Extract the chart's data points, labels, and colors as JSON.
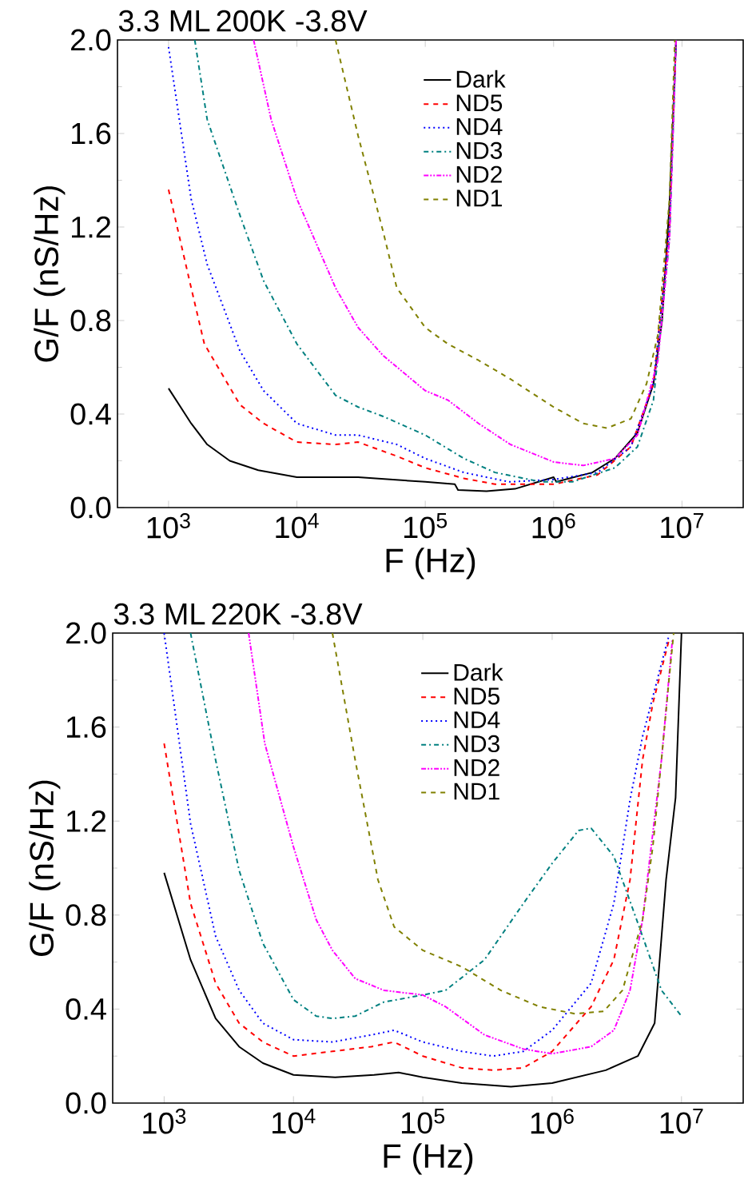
{
  "chart_data": [
    {
      "type": "line",
      "title": "3.3 ML",
      "subtitle": "200K -3.8V",
      "xlabel": "F (Hz)",
      "ylabel": "G/F (nS/Hz)",
      "log": "x",
      "legend": "top right",
      "xlim": [
        400,
        30000000
      ],
      "ylim": [
        0,
        2
      ],
      "xticks": [
        {
          "value": 1000,
          "label": "10$^{3}$"
        },
        {
          "value": 10000,
          "label": "10$^{4}$"
        },
        {
          "value": 100000,
          "label": "10$^{5}$"
        },
        {
          "value": 1000000,
          "label": "10$^{6}$"
        },
        {
          "value": 10000000,
          "label": "10$^{7}$"
        }
      ],
      "yticks": [
        {
          "value": 0,
          "label": "0.0"
        },
        {
          "value": 0.4,
          "label": "0.4"
        },
        {
          "value": 0.8,
          "label": "0.8"
        },
        {
          "value": 1.2,
          "label": "1.2"
        },
        {
          "value": 1.6,
          "label": "1.6"
        },
        {
          "value": 2,
          "label": "2.0"
        }
      ],
      "series": [
        {
          "name": "Dark",
          "color": "#000000",
          "line_style": "solid",
          "x": [
            1000,
            1500,
            2000,
            3000,
            5000,
            10000,
            30000,
            100000,
            170000,
            180000,
            300000,
            500000,
            1000000,
            1050000,
            2000000,
            3000000,
            4500000,
            6000000,
            7000000,
            8000000,
            9000000
          ],
          "values": [
            0.51,
            0.36,
            0.27,
            0.2,
            0.16,
            0.13,
            0.13,
            0.11,
            0.1,
            0.075,
            0.07,
            0.08,
            0.13,
            0.11,
            0.15,
            0.21,
            0.32,
            0.53,
            0.8,
            1.3,
            2.0
          ]
        },
        {
          "name": "ND5",
          "color": "#ff0000",
          "line_style": "dashed",
          "x": [
            1000,
            1500,
            1900,
            3600,
            5500,
            10000,
            20000,
            30000,
            60000,
            100000,
            200000,
            350000,
            1000000,
            2200000,
            4000000,
            6000000,
            8000000,
            9000000
          ],
          "values": [
            1.36,
            0.94,
            0.7,
            0.44,
            0.36,
            0.28,
            0.27,
            0.28,
            0.22,
            0.17,
            0.125,
            0.1,
            0.1,
            0.14,
            0.26,
            0.53,
            1.2,
            2.0
          ]
        },
        {
          "name": "ND4",
          "color": "#0000ff",
          "line_style": "dotted",
          "x": [
            1000,
            1500,
            2000,
            3600,
            5500,
            10000,
            20000,
            30000,
            60000,
            100000,
            200000,
            450000,
            1000000,
            2200000,
            4000000,
            6000000,
            8000000,
            9000000
          ],
          "values": [
            1.97,
            1.32,
            1.04,
            0.67,
            0.5,
            0.36,
            0.31,
            0.31,
            0.27,
            0.21,
            0.15,
            0.11,
            0.12,
            0.15,
            0.26,
            0.53,
            1.2,
            2.0
          ]
        },
        {
          "name": "ND3",
          "color": "#008080",
          "line_style": "dashdot",
          "x": [
            1600,
            2000,
            3600,
            5500,
            10000,
            20000,
            30000,
            47000,
            100000,
            200000,
            350000,
            800000,
            1400000,
            3000000,
            4500000,
            6000000,
            8000000,
            9000000
          ],
          "values": [
            2.0,
            1.66,
            1.25,
            0.97,
            0.7,
            0.48,
            0.43,
            0.39,
            0.31,
            0.21,
            0.15,
            0.11,
            0.11,
            0.17,
            0.26,
            0.46,
            1.15,
            2.0
          ]
        },
        {
          "name": "ND2",
          "color": "#ff00ff",
          "line_style": "dashdotdot",
          "x": [
            4600,
            6300,
            10000,
            20000,
            30000,
            47000,
            100000,
            150000,
            260000,
            460000,
            1000000,
            1700000,
            3000000,
            4500000,
            6500000,
            8000000,
            9000000
          ],
          "values": [
            2.0,
            1.66,
            1.32,
            0.94,
            0.77,
            0.65,
            0.5,
            0.46,
            0.36,
            0.27,
            0.195,
            0.18,
            0.21,
            0.31,
            0.63,
            1.15,
            2.0
          ]
        },
        {
          "name": "ND1",
          "color": "#808000",
          "line_style": "dashed",
          "x": [
            20000,
            30000,
            47000,
            60000,
            100000,
            150000,
            260000,
            460000,
            1000000,
            1700000,
            2600000,
            4000000,
            5300000,
            6500000,
            8000000,
            8800000
          ],
          "values": [
            2.0,
            1.59,
            1.18,
            0.94,
            0.77,
            0.7,
            0.63,
            0.55,
            0.43,
            0.36,
            0.34,
            0.38,
            0.53,
            0.74,
            1.32,
            2.0
          ]
        }
      ]
    },
    {
      "type": "line",
      "title": "3.3 ML",
      "subtitle": "220K -3.8V",
      "xlabel": "F (Hz)",
      "ylabel": "G/F (nS/Hz)",
      "log": "x",
      "legend": "top right",
      "xlim": [
        400,
        30000000
      ],
      "ylim": [
        0,
        2
      ],
      "xticks": [
        {
          "value": 1000,
          "label": "10$^{3}$"
        },
        {
          "value": 10000,
          "label": "10$^{4}$"
        },
        {
          "value": 100000,
          "label": "10$^{5}$"
        },
        {
          "value": 1000000,
          "label": "10$^{6}$"
        },
        {
          "value": 10000000,
          "label": "10$^{7}$"
        }
      ],
      "yticks": [
        {
          "value": 0,
          "label": "0.0"
        },
        {
          "value": 0.4,
          "label": "0.4"
        },
        {
          "value": 0.8,
          "label": "0.8"
        },
        {
          "value": 1.2,
          "label": "1.2"
        },
        {
          "value": 1.6,
          "label": "1.6"
        },
        {
          "value": 2,
          "label": "2.0"
        }
      ],
      "series": [
        {
          "name": "Dark",
          "color": "#000000",
          "line_style": "solid",
          "x": [
            1000,
            1600,
            2500,
            3800,
            5800,
            10000,
            21000,
            42000,
            65000,
            100000,
            200000,
            480000,
            1000000,
            2600000,
            4600000,
            6200000,
            7600000,
            9000000,
            10000000
          ],
          "values": [
            0.98,
            0.61,
            0.36,
            0.24,
            0.17,
            0.12,
            0.11,
            0.12,
            0.13,
            0.11,
            0.085,
            0.07,
            0.085,
            0.14,
            0.2,
            0.34,
            0.95,
            1.3,
            2.0
          ]
        },
        {
          "name": "ND5",
          "color": "#ff0000",
          "line_style": "dashed",
          "x": [
            1000,
            1600,
            2500,
            3800,
            5800,
            10000,
            20000,
            40000,
            60000,
            100000,
            200000,
            350000,
            600000,
            1000000,
            2000000,
            3000000,
            4000000,
            5000000,
            6000000,
            8000000
          ],
          "values": [
            1.53,
            0.85,
            0.51,
            0.34,
            0.26,
            0.2,
            0.22,
            0.24,
            0.26,
            0.2,
            0.15,
            0.14,
            0.15,
            0.22,
            0.41,
            0.61,
            0.95,
            1.46,
            1.7,
            1.97
          ]
        },
        {
          "name": "ND4",
          "color": "#0000ff",
          "line_style": "dotted",
          "x": [
            1000,
            1600,
            2500,
            3800,
            5800,
            10000,
            20000,
            40000,
            60000,
            100000,
            200000,
            350000,
            600000,
            1000000,
            2000000,
            3000000,
            4000000,
            5000000,
            7000000,
            8000000
          ],
          "values": [
            2.0,
            1.19,
            0.71,
            0.48,
            0.34,
            0.27,
            0.26,
            0.29,
            0.31,
            0.26,
            0.22,
            0.2,
            0.22,
            0.31,
            0.51,
            0.85,
            1.29,
            1.56,
            1.87,
            1.99
          ]
        },
        {
          "name": "ND3",
          "color": "#008080",
          "line_style": "dashdot",
          "x": [
            1600,
            2500,
            3800,
            5800,
            10000,
            15000,
            20000,
            30000,
            50000,
            100000,
            150000,
            300000,
            600000,
            1000000,
            1600000,
            2000000,
            3000000,
            5000000,
            7000000,
            10000000
          ],
          "values": [
            2.0,
            1.46,
            0.99,
            0.68,
            0.44,
            0.37,
            0.36,
            0.37,
            0.43,
            0.46,
            0.48,
            0.61,
            0.85,
            1.02,
            1.16,
            1.17,
            1.05,
            0.71,
            0.48,
            0.37
          ]
        },
        {
          "name": "ND2",
          "color": "#ff00ff",
          "line_style": "dashdotdot",
          "x": [
            4500,
            6000,
            10000,
            15000,
            20000,
            30000,
            50000,
            100000,
            150000,
            300000,
            600000,
            1000000,
            2000000,
            3000000,
            4000000,
            5000000,
            7000000,
            8500000
          ],
          "values": [
            2.0,
            1.53,
            1.09,
            0.78,
            0.65,
            0.53,
            0.48,
            0.46,
            0.41,
            0.29,
            0.23,
            0.21,
            0.24,
            0.31,
            0.48,
            0.78,
            1.46,
            1.97
          ]
        },
        {
          "name": "ND1",
          "color": "#808000",
          "line_style": "dashed",
          "x": [
            20000,
            30000,
            45000,
            60000,
            100000,
            200000,
            400000,
            800000,
            1500000,
            2500000,
            3500000,
            5000000,
            6000000,
            7000000,
            8000000,
            8700000
          ],
          "values": [
            2.0,
            1.46,
            0.95,
            0.75,
            0.65,
            0.58,
            0.48,
            0.41,
            0.38,
            0.39,
            0.48,
            0.78,
            1.09,
            1.46,
            1.8,
            2.0
          ]
        }
      ]
    }
  ]
}
